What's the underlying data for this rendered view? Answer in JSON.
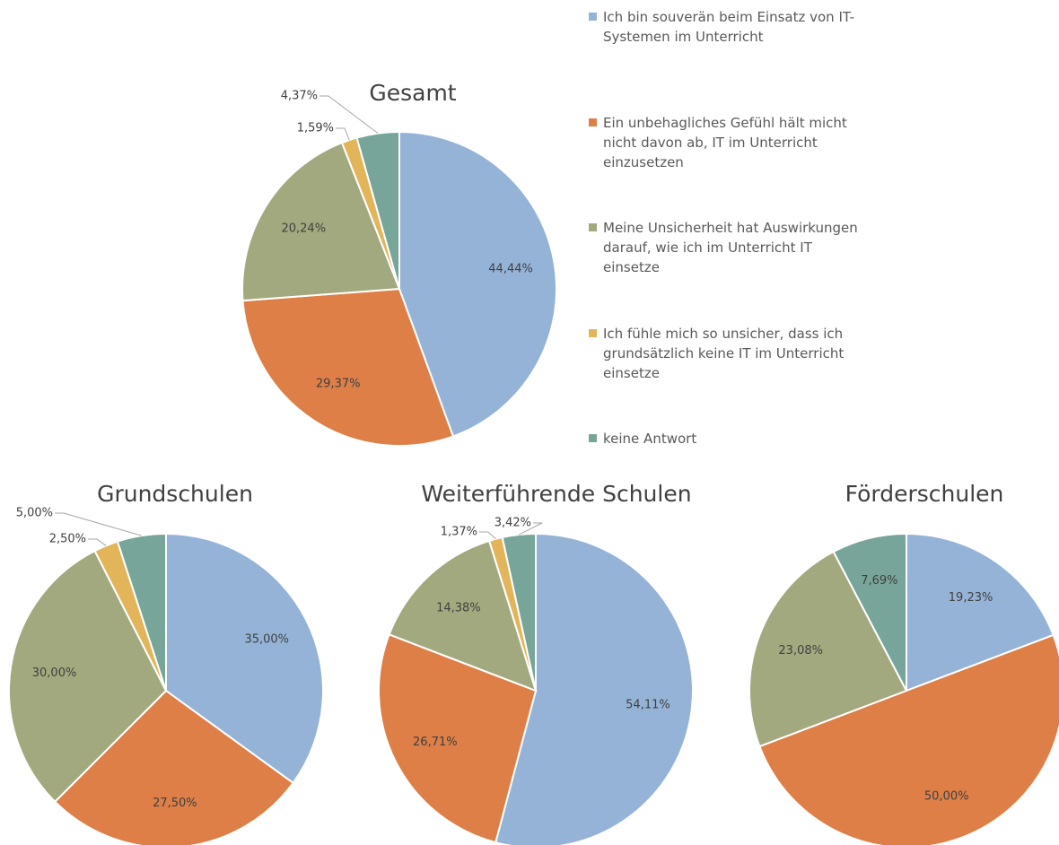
{
  "chart_data": [
    {
      "type": "pie",
      "title": "Gesamt",
      "categories": [
        "Ich bin souverän beim Einsatz von IT-Systemen im Unterricht",
        "Ein unbehagliches Gefühl hält micht nicht davon ab, IT im Unterricht einzusetzen",
        "Meine Unsicherheit hat Auswirkungen darauf, wie ich im Unterricht IT einsetze",
        "Ich fühle mich so unsicher, dass ich grundsätzlich keine IT im Unterricht einsetze",
        "keine Antwort"
      ],
      "colors": [
        "#95b3d7",
        "#dd7f47",
        "#a3a97f",
        "#e2b55b",
        "#78a599"
      ],
      "values": [
        44.44,
        29.37,
        20.24,
        1.59,
        4.37
      ],
      "value_labels": [
        "44,44%",
        "29,37%",
        "20,24%",
        "1,59%",
        "4,37%"
      ]
    },
    {
      "type": "pie",
      "title": "Grundschulen",
      "values": [
        35,
        27.5,
        30,
        2.5,
        5
      ],
      "value_labels": [
        "35,00%",
        "27,50%",
        "30,00%",
        "2,50%",
        "5,00%"
      ]
    },
    {
      "type": "pie",
      "title": "Weiterführende Schulen",
      "values": [
        54.11,
        26.71,
        14.38,
        1.37,
        3.42
      ],
      "value_labels": [
        "54,11%",
        "26,71%",
        "14,38%",
        "1,37%",
        "3,42%"
      ]
    },
    {
      "type": "pie",
      "title": "Förderschulen",
      "values": [
        19.23,
        50,
        23.08,
        0,
        7.69
      ],
      "value_labels": [
        "19,23%",
        "50,00%",
        "23,08%",
        null,
        "7,69%"
      ]
    }
  ]
}
